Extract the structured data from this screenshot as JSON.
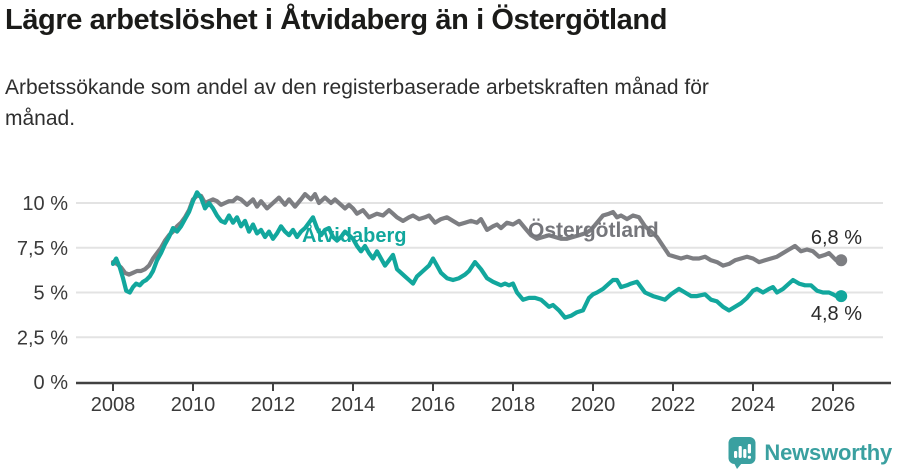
{
  "header": {
    "title": "Lägre arbetslöshet i Åtvidaberg än i Östergötland",
    "subtitle_line1": "Arbetssökande som andel av den registerbaserade arbetskraften månad för",
    "subtitle_line2": "månad."
  },
  "chart_data": {
    "type": "line",
    "title": "Lägre arbetslöshet i Åtvidaberg än i Östergötland",
    "subtitle": "Arbetssökande som andel av den registerbaserade arbetskraften månad för månad.",
    "unit": "%",
    "grid": true,
    "legend_position": "inline-labels-on-lines",
    "x_axis": {
      "ticks": [
        2008,
        2010,
        2012,
        2014,
        2016,
        2018,
        2020,
        2022,
        2024,
        2026
      ]
    },
    "y_axis": {
      "tick_values": [
        0,
        2.5,
        5,
        7.5,
        10
      ],
      "tick_labels": [
        "0 %",
        "2,5 %",
        "5 %",
        "7,5 %",
        "10 %"
      ],
      "min": 0,
      "max": 10.9
    },
    "series": [
      {
        "name": "Östergötland",
        "slug": "ostergotland",
        "color": "#7d7e82",
        "end_label": "6,8 %",
        "end_value": 6.8,
        "points": [
          [
            2008.0,
            6.7
          ],
          [
            2008.1,
            6.6
          ],
          [
            2008.2,
            6.4
          ],
          [
            2008.3,
            6.1
          ],
          [
            2008.4,
            6.0
          ],
          [
            2008.5,
            6.1
          ],
          [
            2008.6,
            6.2
          ],
          [
            2008.7,
            6.2
          ],
          [
            2008.8,
            6.3
          ],
          [
            2008.9,
            6.5
          ],
          [
            2009.0,
            6.9
          ],
          [
            2009.1,
            7.2
          ],
          [
            2009.2,
            7.5
          ],
          [
            2009.3,
            7.9
          ],
          [
            2009.4,
            8.2
          ],
          [
            2009.5,
            8.4
          ],
          [
            2009.6,
            8.7
          ],
          [
            2009.7,
            8.9
          ],
          [
            2009.8,
            9.2
          ],
          [
            2009.9,
            9.6
          ],
          [
            2010.0,
            10.2
          ],
          [
            2010.1,
            10.4
          ],
          [
            2010.2,
            10.4
          ],
          [
            2010.3,
            10.0
          ],
          [
            2010.4,
            10.1
          ],
          [
            2010.5,
            10.2
          ],
          [
            2010.6,
            10.1
          ],
          [
            2010.7,
            9.9
          ],
          [
            2010.8,
            10.0
          ],
          [
            2010.9,
            10.1
          ],
          [
            2011.0,
            10.1
          ],
          [
            2011.1,
            10.3
          ],
          [
            2011.2,
            10.2
          ],
          [
            2011.35,
            9.9
          ],
          [
            2011.5,
            10.2
          ],
          [
            2011.6,
            9.8
          ],
          [
            2011.7,
            10.1
          ],
          [
            2011.85,
            9.7
          ],
          [
            2012.0,
            10.0
          ],
          [
            2012.15,
            10.3
          ],
          [
            2012.3,
            9.9
          ],
          [
            2012.4,
            10.2
          ],
          [
            2012.55,
            9.8
          ],
          [
            2012.7,
            10.2
          ],
          [
            2012.8,
            10.5
          ],
          [
            2012.95,
            10.2
          ],
          [
            2013.05,
            10.5
          ],
          [
            2013.15,
            10.0
          ],
          [
            2013.3,
            10.3
          ],
          [
            2013.45,
            10.0
          ],
          [
            2013.55,
            10.2
          ],
          [
            2013.7,
            9.9
          ],
          [
            2013.8,
            9.7
          ],
          [
            2013.9,
            9.9
          ],
          [
            2014.0,
            9.7
          ],
          [
            2014.1,
            9.4
          ],
          [
            2014.25,
            9.6
          ],
          [
            2014.4,
            9.2
          ],
          [
            2014.5,
            9.3
          ],
          [
            2014.6,
            9.4
          ],
          [
            2014.75,
            9.3
          ],
          [
            2014.9,
            9.6
          ],
          [
            2015.0,
            9.4
          ],
          [
            2015.1,
            9.2
          ],
          [
            2015.25,
            9.0
          ],
          [
            2015.4,
            9.2
          ],
          [
            2015.5,
            9.3
          ],
          [
            2015.65,
            9.1
          ],
          [
            2015.8,
            9.2
          ],
          [
            2015.9,
            9.3
          ],
          [
            2016.05,
            8.9
          ],
          [
            2016.2,
            9.1
          ],
          [
            2016.35,
            9.2
          ],
          [
            2016.5,
            9.0
          ],
          [
            2016.65,
            8.8
          ],
          [
            2016.8,
            8.9
          ],
          [
            2016.95,
            9.0
          ],
          [
            2017.1,
            8.9
          ],
          [
            2017.2,
            9.1
          ],
          [
            2017.35,
            8.5
          ],
          [
            2017.5,
            8.7
          ],
          [
            2017.6,
            8.8
          ],
          [
            2017.7,
            8.6
          ],
          [
            2017.85,
            8.9
          ],
          [
            2018.0,
            8.8
          ],
          [
            2018.15,
            9.0
          ],
          [
            2018.3,
            8.6
          ],
          [
            2018.45,
            8.2
          ],
          [
            2018.6,
            8.0
          ],
          [
            2018.75,
            8.1
          ],
          [
            2018.9,
            8.2
          ],
          [
            2019.05,
            8.1
          ],
          [
            2019.2,
            8.0
          ],
          [
            2019.35,
            8.0
          ],
          [
            2019.5,
            8.1
          ],
          [
            2019.65,
            8.2
          ],
          [
            2019.8,
            8.3
          ],
          [
            2019.95,
            8.5
          ],
          [
            2020.1,
            8.9
          ],
          [
            2020.25,
            9.3
          ],
          [
            2020.4,
            9.4
          ],
          [
            2020.5,
            9.5
          ],
          [
            2020.6,
            9.2
          ],
          [
            2020.7,
            9.3
          ],
          [
            2020.85,
            9.1
          ],
          [
            2021.0,
            9.3
          ],
          [
            2021.15,
            9.2
          ],
          [
            2021.3,
            8.7
          ],
          [
            2021.45,
            8.4
          ],
          [
            2021.6,
            8.1
          ],
          [
            2021.75,
            7.6
          ],
          [
            2021.9,
            7.1
          ],
          [
            2022.05,
            7.0
          ],
          [
            2022.2,
            6.9
          ],
          [
            2022.35,
            7.0
          ],
          [
            2022.5,
            6.9
          ],
          [
            2022.65,
            6.9
          ],
          [
            2022.8,
            7.0
          ],
          [
            2022.95,
            6.8
          ],
          [
            2023.1,
            6.7
          ],
          [
            2023.25,
            6.5
          ],
          [
            2023.4,
            6.6
          ],
          [
            2023.55,
            6.8
          ],
          [
            2023.7,
            6.9
          ],
          [
            2023.85,
            7.0
          ],
          [
            2024.0,
            6.9
          ],
          [
            2024.15,
            6.7
          ],
          [
            2024.3,
            6.8
          ],
          [
            2024.45,
            6.9
          ],
          [
            2024.6,
            7.0
          ],
          [
            2024.75,
            7.2
          ],
          [
            2024.9,
            7.4
          ],
          [
            2025.05,
            7.6
          ],
          [
            2025.2,
            7.3
          ],
          [
            2025.35,
            7.4
          ],
          [
            2025.5,
            7.3
          ],
          [
            2025.65,
            7.0
          ],
          [
            2025.8,
            7.1
          ],
          [
            2025.9,
            7.2
          ],
          [
            2026.08,
            6.8
          ]
        ]
      },
      {
        "name": "Åtvidaberg",
        "slug": "atvidaberg",
        "color": "#12a79d",
        "end_label": "4,8 %",
        "end_value": 4.8,
        "points": [
          [
            2008.0,
            6.6
          ],
          [
            2008.08,
            6.9
          ],
          [
            2008.17,
            6.4
          ],
          [
            2008.25,
            5.8
          ],
          [
            2008.33,
            5.1
          ],
          [
            2008.42,
            5.0
          ],
          [
            2008.5,
            5.3
          ],
          [
            2008.58,
            5.5
          ],
          [
            2008.67,
            5.4
          ],
          [
            2008.75,
            5.6
          ],
          [
            2008.83,
            5.7
          ],
          [
            2008.92,
            5.9
          ],
          [
            2009.0,
            6.2
          ],
          [
            2009.1,
            6.8
          ],
          [
            2009.2,
            7.2
          ],
          [
            2009.3,
            7.7
          ],
          [
            2009.4,
            8.1
          ],
          [
            2009.5,
            8.6
          ],
          [
            2009.6,
            8.4
          ],
          [
            2009.7,
            8.7
          ],
          [
            2009.8,
            9.1
          ],
          [
            2009.9,
            9.5
          ],
          [
            2010.0,
            10.1
          ],
          [
            2010.1,
            10.6
          ],
          [
            2010.2,
            10.3
          ],
          [
            2010.3,
            9.7
          ],
          [
            2010.4,
            10.0
          ],
          [
            2010.5,
            9.7
          ],
          [
            2010.6,
            9.3
          ],
          [
            2010.7,
            9.0
          ],
          [
            2010.8,
            8.9
          ],
          [
            2010.9,
            9.3
          ],
          [
            2011.0,
            8.9
          ],
          [
            2011.1,
            9.2
          ],
          [
            2011.2,
            8.7
          ],
          [
            2011.3,
            9.0
          ],
          [
            2011.4,
            8.4
          ],
          [
            2011.5,
            8.8
          ],
          [
            2011.6,
            8.3
          ],
          [
            2011.7,
            8.5
          ],
          [
            2011.8,
            8.1
          ],
          [
            2011.9,
            8.4
          ],
          [
            2012.0,
            8.0
          ],
          [
            2012.1,
            8.3
          ],
          [
            2012.2,
            8.7
          ],
          [
            2012.3,
            8.4
          ],
          [
            2012.4,
            8.2
          ],
          [
            2012.5,
            8.5
          ],
          [
            2012.6,
            8.1
          ],
          [
            2012.7,
            8.4
          ],
          [
            2012.8,
            8.6
          ],
          [
            2012.9,
            8.9
          ],
          [
            2013.0,
            9.2
          ],
          [
            2013.1,
            8.6
          ],
          [
            2013.2,
            8.2
          ],
          [
            2013.3,
            8.5
          ],
          [
            2013.4,
            8.6
          ],
          [
            2013.5,
            8.1
          ],
          [
            2013.6,
            7.9
          ],
          [
            2013.7,
            8.1
          ],
          [
            2013.8,
            8.4
          ],
          [
            2013.9,
            8.2
          ],
          [
            2014.0,
            8.0
          ],
          [
            2014.1,
            7.6
          ],
          [
            2014.2,
            7.3
          ],
          [
            2014.3,
            7.6
          ],
          [
            2014.4,
            7.2
          ],
          [
            2014.5,
            6.9
          ],
          [
            2014.6,
            7.3
          ],
          [
            2014.7,
            6.9
          ],
          [
            2014.8,
            6.5
          ],
          [
            2014.9,
            6.8
          ],
          [
            2015.0,
            7.1
          ],
          [
            2015.1,
            6.3
          ],
          [
            2015.2,
            6.1
          ],
          [
            2015.3,
            5.9
          ],
          [
            2015.4,
            5.7
          ],
          [
            2015.5,
            5.5
          ],
          [
            2015.6,
            5.9
          ],
          [
            2015.75,
            6.2
          ],
          [
            2015.9,
            6.5
          ],
          [
            2016.0,
            6.9
          ],
          [
            2016.1,
            6.5
          ],
          [
            2016.2,
            6.1
          ],
          [
            2016.35,
            5.8
          ],
          [
            2016.5,
            5.7
          ],
          [
            2016.65,
            5.8
          ],
          [
            2016.8,
            6.0
          ],
          [
            2016.9,
            6.2
          ],
          [
            2017.05,
            6.7
          ],
          [
            2017.2,
            6.3
          ],
          [
            2017.35,
            5.8
          ],
          [
            2017.5,
            5.6
          ],
          [
            2017.6,
            5.5
          ],
          [
            2017.7,
            5.4
          ],
          [
            2017.8,
            5.5
          ],
          [
            2017.9,
            5.4
          ],
          [
            2018.0,
            5.5
          ],
          [
            2018.1,
            5.0
          ],
          [
            2018.25,
            4.6
          ],
          [
            2018.4,
            4.7
          ],
          [
            2018.55,
            4.7
          ],
          [
            2018.7,
            4.6
          ],
          [
            2018.8,
            4.4
          ],
          [
            2018.9,
            4.2
          ],
          [
            2019.0,
            4.3
          ],
          [
            2019.15,
            4.0
          ],
          [
            2019.3,
            3.6
          ],
          [
            2019.45,
            3.7
          ],
          [
            2019.6,
            3.9
          ],
          [
            2019.75,
            4.0
          ],
          [
            2019.9,
            4.7
          ],
          [
            2020.0,
            4.9
          ],
          [
            2020.1,
            5.0
          ],
          [
            2020.25,
            5.2
          ],
          [
            2020.4,
            5.5
          ],
          [
            2020.5,
            5.7
          ],
          [
            2020.6,
            5.7
          ],
          [
            2020.7,
            5.3
          ],
          [
            2020.85,
            5.4
          ],
          [
            2020.95,
            5.5
          ],
          [
            2021.1,
            5.6
          ],
          [
            2021.3,
            5.0
          ],
          [
            2021.5,
            4.8
          ],
          [
            2021.65,
            4.7
          ],
          [
            2021.8,
            4.6
          ],
          [
            2021.95,
            4.9
          ],
          [
            2022.15,
            5.2
          ],
          [
            2022.3,
            5.0
          ],
          [
            2022.45,
            4.8
          ],
          [
            2022.6,
            4.8
          ],
          [
            2022.8,
            4.9
          ],
          [
            2022.95,
            4.6
          ],
          [
            2023.1,
            4.5
          ],
          [
            2023.25,
            4.2
          ],
          [
            2023.4,
            4.0
          ],
          [
            2023.55,
            4.2
          ],
          [
            2023.7,
            4.4
          ],
          [
            2023.85,
            4.7
          ],
          [
            2024.0,
            5.1
          ],
          [
            2024.1,
            5.2
          ],
          [
            2024.25,
            5.0
          ],
          [
            2024.4,
            5.2
          ],
          [
            2024.5,
            5.3
          ],
          [
            2024.6,
            5.0
          ],
          [
            2024.75,
            5.2
          ],
          [
            2024.9,
            5.5
          ],
          [
            2025.0,
            5.7
          ],
          [
            2025.15,
            5.5
          ],
          [
            2025.3,
            5.4
          ],
          [
            2025.45,
            5.4
          ],
          [
            2025.6,
            5.1
          ],
          [
            2025.75,
            5.0
          ],
          [
            2025.9,
            5.0
          ],
          [
            2026.0,
            4.9
          ],
          [
            2026.08,
            4.8
          ]
        ]
      }
    ]
  },
  "footer": {
    "brand": "Newsworthy"
  },
  "colors": {
    "accent_teal": "#12a79d",
    "line_gray": "#7d7e82",
    "axis_text": "#3a3a3a",
    "gridline": "#e3e3e3",
    "axis_line": "#414141",
    "logo_teal": "#3aa0a0"
  }
}
